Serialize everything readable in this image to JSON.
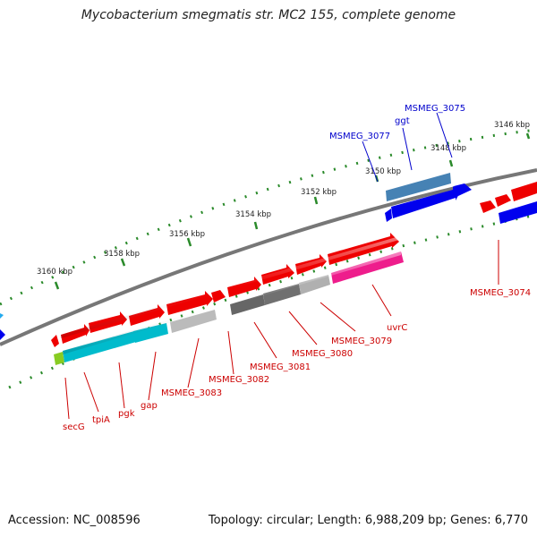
{
  "title": "Mycobacterium smegmatis str. MC2 155, complete genome",
  "footer": {
    "accession": "Accession: NC_008596",
    "summary": "Topology: circular; Length: 6,988,209 bp; Genes: 6,770"
  },
  "scale_labels": [
    "3146 kbp",
    "3148 kbp",
    "3150 kbp",
    "3152 kbp",
    "3154 kbp",
    "3156 kbp",
    "3158 kbp",
    "3160 kbp"
  ],
  "gene_labels_top": [
    "MSMEG_3075",
    "ggt",
    "MSMEG_3077"
  ],
  "gene_labels_bottom": [
    "MSMEG_3074",
    "uvrC",
    "MSMEG_3079",
    "MSMEG_3080",
    "MSMEG_3081",
    "MSMEG_3082",
    "MSMEG_3083",
    "gap",
    "pgk",
    "tpiA",
    "secG"
  ],
  "colors": {
    "cds_forward": "#ee0000",
    "cds_reverse": "#0000ee",
    "label_red": "#cc0000",
    "label_blue": "#0000cc",
    "backbone": "#808080",
    "scale_dots": "#2a8a2a"
  }
}
